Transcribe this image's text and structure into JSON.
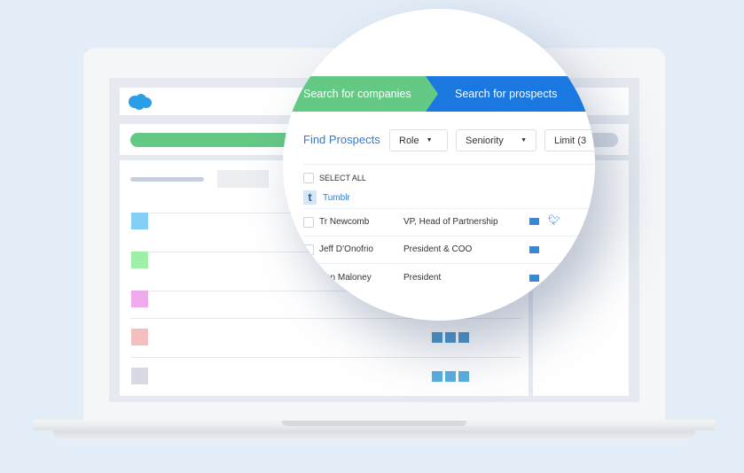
{
  "steps": {
    "companies": "Search for companies",
    "prospects": "Search for prospects"
  },
  "colors": {
    "green": "#65c986",
    "blue": "#1a78e0",
    "link": "#2e7bd6"
  },
  "toolbar": {
    "title": "Find Prospects",
    "role": "Role",
    "seniority": "Seniority",
    "limit": "Limit (3"
  },
  "select_all": "SELECT ALL",
  "company": {
    "name": "Tumblr",
    "logo": "t"
  },
  "prospects": [
    {
      "name": "Tr Newcomb",
      "title": "VP, Head of Partnership",
      "email": true,
      "twitter": true
    },
    {
      "name": "Jeff D’Onofrio",
      "title": "President & COO",
      "email": true,
      "twitter": false
    },
    {
      "name": "hn Maloney",
      "title": "President",
      "email": true,
      "twitter": false
    }
  ],
  "background_list_colors": [
    "#84cff5",
    "#9ef0a8",
    "#eeaaeb",
    "#f3bfbf",
    "#d9d9e3"
  ]
}
